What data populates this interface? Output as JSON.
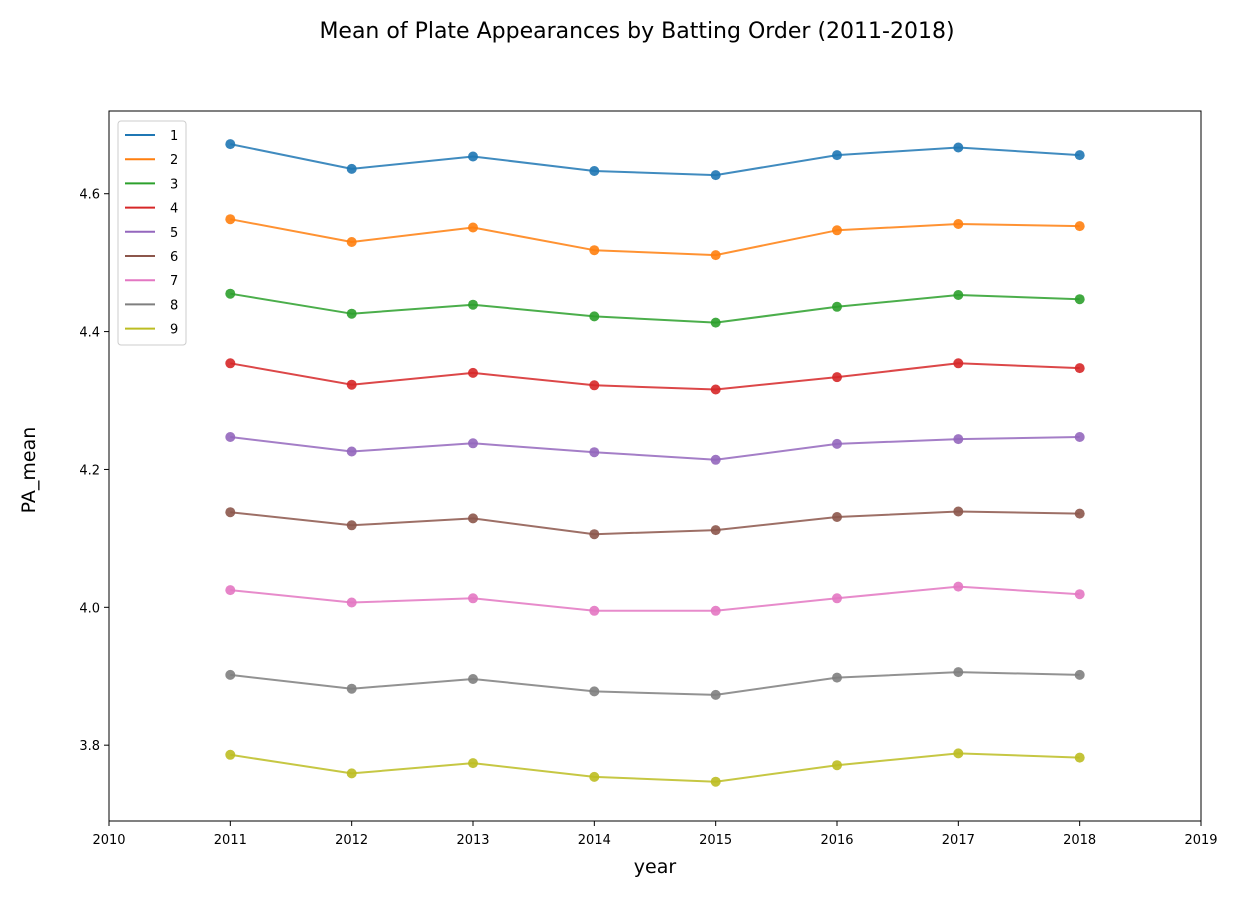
{
  "chart_data": {
    "type": "line",
    "title": "Mean of Plate Appearances by Batting Order (2011-2018)",
    "xlabel": "year",
    "ylabel": "PA_mean",
    "x": [
      2011,
      2012,
      2013,
      2014,
      2015,
      2016,
      2017,
      2018
    ],
    "xlim": [
      2010,
      2019
    ],
    "ylim": [
      3.69,
      4.72
    ],
    "xticks": [
      2010,
      2011,
      2012,
      2013,
      2014,
      2015,
      2016,
      2017,
      2018,
      2019
    ],
    "yticks": [
      "3.8",
      "4.0",
      "4.2",
      "4.4",
      "4.6"
    ],
    "grid": false,
    "legend_position": "upper-left",
    "markers": true,
    "series": [
      {
        "name": "1",
        "color": "#1f77b4",
        "values": [
          4.672,
          4.636,
          4.654,
          4.633,
          4.627,
          4.656,
          4.667,
          4.656
        ]
      },
      {
        "name": "2",
        "color": "#ff7f0e",
        "values": [
          4.563,
          4.53,
          4.551,
          4.518,
          4.511,
          4.547,
          4.556,
          4.553
        ]
      },
      {
        "name": "3",
        "color": "#2ca02c",
        "values": [
          4.455,
          4.426,
          4.439,
          4.422,
          4.413,
          4.436,
          4.453,
          4.447
        ]
      },
      {
        "name": "4",
        "color": "#d62728",
        "values": [
          4.354,
          4.323,
          4.34,
          4.322,
          4.316,
          4.334,
          4.354,
          4.347
        ]
      },
      {
        "name": "5",
        "color": "#9467bd",
        "values": [
          4.247,
          4.226,
          4.238,
          4.225,
          4.214,
          4.237,
          4.244,
          4.247
        ]
      },
      {
        "name": "6",
        "color": "#8c564b",
        "values": [
          4.138,
          4.119,
          4.129,
          4.106,
          4.112,
          4.131,
          4.139,
          4.136
        ]
      },
      {
        "name": "7",
        "color": "#e377c2",
        "values": [
          4.025,
          4.007,
          4.013,
          3.995,
          3.995,
          4.013,
          4.03,
          4.019
        ]
      },
      {
        "name": "8",
        "color": "#7f7f7f",
        "values": [
          3.902,
          3.882,
          3.896,
          3.878,
          3.873,
          3.898,
          3.906,
          3.902
        ]
      },
      {
        "name": "9",
        "color": "#bcbd22",
        "values": [
          3.786,
          3.759,
          3.774,
          3.754,
          3.747,
          3.771,
          3.788,
          3.782
        ]
      }
    ]
  }
}
